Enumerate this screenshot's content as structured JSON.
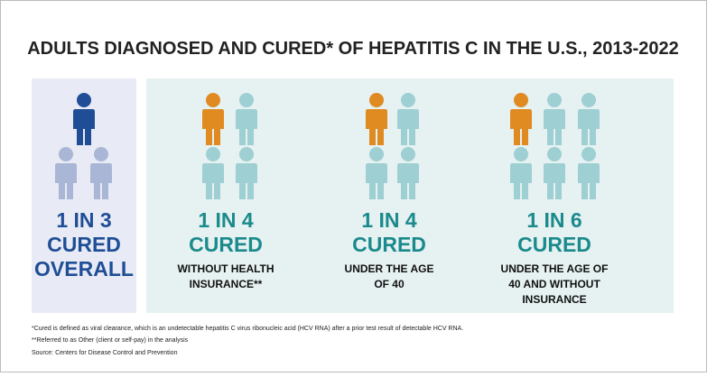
{
  "title": "ADULTS DIAGNOSED AND CURED* OF HEPATITIS C IN THE U.S., 2013-2022",
  "panels": [
    {
      "headline": [
        "1 IN 3",
        "CURED",
        "OVERALL"
      ],
      "description": []
    },
    {
      "headline": [
        "1 IN 4",
        "CURED"
      ],
      "description": [
        "WITHOUT HEALTH",
        "INSURANCE**"
      ]
    },
    {
      "headline": [
        "1 IN 4",
        "CURED"
      ],
      "description": [
        "UNDER THE AGE",
        "OF 40"
      ]
    },
    {
      "headline": [
        "1 IN 6",
        "CURED"
      ],
      "description": [
        "UNDER THE AGE OF",
        "40 AND WITHOUT",
        "INSURANCE"
      ]
    }
  ],
  "footnotes": [
    "*Cured is defined as viral clearance, which is an undetectable hepatitis C virus ribonucleic acid (HCV RNA) after a prior test result of detectable HCV RNA.",
    "**Referred to as Other (client or self-pay) in the analysis"
  ],
  "source": "Source: Centers for Disease Control and Prevention"
}
